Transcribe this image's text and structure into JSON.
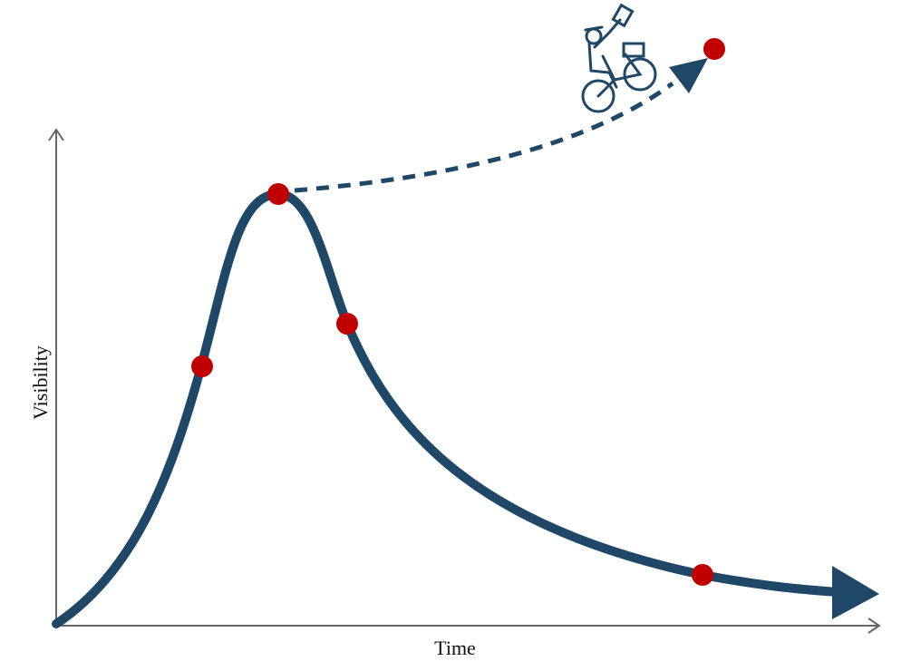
{
  "axes": {
    "x_label": "Time",
    "y_label": "Visibility"
  }
}
